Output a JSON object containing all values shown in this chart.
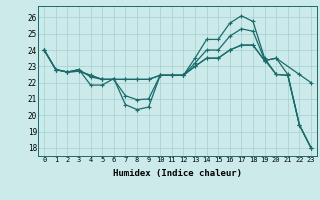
{
  "xlabel": "Humidex (Indice chaleur)",
  "bg_color": "#cceaea",
  "line_color": "#1a6b6b",
  "grid_color": "#aad4d4",
  "xlim": [
    -0.5,
    23.5
  ],
  "ylim": [
    17.5,
    26.7
  ],
  "yticks": [
    18,
    19,
    20,
    21,
    22,
    23,
    24,
    25,
    26
  ],
  "xticks": [
    0,
    1,
    2,
    3,
    4,
    5,
    6,
    7,
    8,
    9,
    10,
    11,
    12,
    13,
    14,
    15,
    16,
    17,
    18,
    19,
    20,
    21,
    22,
    23
  ],
  "line1_x": [
    0,
    1,
    2,
    3,
    4,
    5,
    6,
    7,
    8,
    9,
    10,
    11,
    12,
    13,
    14,
    15,
    16,
    17,
    18,
    19,
    20,
    21,
    22,
    23
  ],
  "line1_y": [
    24.0,
    22.8,
    22.65,
    22.8,
    21.85,
    21.85,
    22.25,
    20.65,
    20.35,
    20.5,
    22.45,
    22.45,
    22.45,
    23.5,
    24.65,
    24.65,
    25.65,
    26.1,
    25.75,
    23.5,
    22.5,
    22.45,
    19.4,
    18.0
  ],
  "line2_x": [
    0,
    1,
    2,
    3,
    4,
    5,
    6,
    7,
    8,
    9,
    10,
    11,
    12,
    13,
    14,
    15,
    16,
    17,
    18,
    19,
    20,
    21,
    22,
    23
  ],
  "line2_y": [
    24.0,
    22.8,
    22.65,
    22.8,
    22.35,
    22.2,
    22.2,
    21.2,
    20.95,
    21.0,
    22.45,
    22.45,
    22.45,
    23.2,
    24.0,
    24.0,
    24.85,
    25.3,
    25.15,
    23.4,
    22.5,
    22.45,
    19.4,
    18.0
  ],
  "line3_x": [
    0,
    1,
    2,
    3,
    4,
    5,
    6,
    7,
    8,
    9,
    10,
    11,
    12,
    13,
    14,
    15,
    16,
    17,
    18,
    19,
    20,
    22,
    23
  ],
  "line3_y": [
    24.0,
    22.8,
    22.65,
    22.7,
    22.45,
    22.2,
    22.2,
    22.2,
    22.2,
    22.2,
    22.45,
    22.45,
    22.45,
    23.0,
    23.5,
    23.5,
    24.0,
    24.3,
    24.3,
    23.35,
    23.5,
    22.5,
    22.0
  ],
  "line4_x": [
    0,
    1,
    2,
    3,
    4,
    5,
    6,
    7,
    8,
    9,
    10,
    11,
    12,
    13,
    14,
    15,
    16,
    17,
    18,
    19,
    20,
    21,
    22,
    23
  ],
  "line4_y": [
    24.0,
    22.8,
    22.65,
    22.7,
    22.45,
    22.2,
    22.2,
    22.2,
    22.2,
    22.2,
    22.45,
    22.45,
    22.45,
    23.0,
    23.5,
    23.5,
    24.0,
    24.3,
    24.3,
    23.35,
    23.5,
    22.5,
    19.4,
    18.0
  ]
}
